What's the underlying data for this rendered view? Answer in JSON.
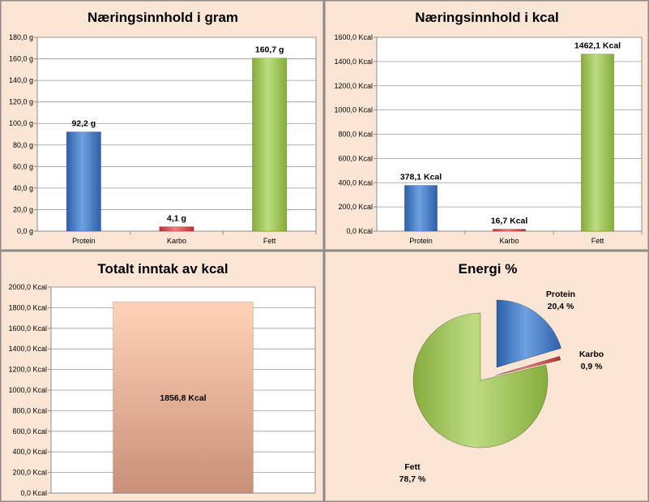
{
  "colors": {
    "protein": "#3f78c8",
    "karbo": "#d64545",
    "fett": "#9bc353",
    "total": "#e9a98c",
    "panel_bg": "#fbe6d5"
  },
  "chart_data": [
    {
      "type": "bar",
      "title": "Næringsinnhold i gram",
      "categories": [
        "Protein",
        "Karbo",
        "Fett"
      ],
      "values": [
        92.2,
        4.1,
        160.7
      ],
      "data_labels": [
        "92,2 g",
        "4,1 g",
        "160,7 g"
      ],
      "ylim": [
        0,
        180
      ],
      "yticks": [
        "0,0 g",
        "20,0 g",
        "40,0 g",
        "60,0 g",
        "80,0 g",
        "100,0 g",
        "120,0 g",
        "140,0 g",
        "160,0 g",
        "180,0 g"
      ],
      "grid": true,
      "legend": "none"
    },
    {
      "type": "bar",
      "title": "Næringsinnhold i kcal",
      "categories": [
        "Protein",
        "Karbo",
        "Fett"
      ],
      "values": [
        378.1,
        16.7,
        1462.1
      ],
      "data_labels": [
        "378,1 Kcal",
        "16,7 Kcal",
        "1462,1 Kcal"
      ],
      "ylim": [
        0,
        1600
      ],
      "yticks": [
        "0,0 Kcal",
        "200,0 Kcal",
        "400,0 Kcal",
        "600,0 Kcal",
        "800,0 Kcal",
        "1000,0 Kcal",
        "1200,0 Kcal",
        "1400,0 Kcal",
        "1600,0 Kcal"
      ],
      "grid": true,
      "legend": "none"
    },
    {
      "type": "bar",
      "title": "Totalt inntak av kcal",
      "categories": [
        ""
      ],
      "values": [
        1856.8
      ],
      "data_labels": [
        "1856,8 Kcal"
      ],
      "ylim": [
        0,
        2000
      ],
      "yticks": [
        "0,0 Kcal",
        "200,0 Kcal",
        "400,0 Kcal",
        "600,0 Kcal",
        "800,0 Kcal",
        "1000,0 Kcal",
        "1200,0 Kcal",
        "1400,0 Kcal",
        "1600,0 Kcal",
        "1800,0 Kcal",
        "2000,0 Kcal"
      ],
      "grid": true,
      "legend": "none"
    },
    {
      "type": "pie",
      "title": "Energi %",
      "categories": [
        "Protein",
        "Karbo",
        "Fett"
      ],
      "values": [
        20.4,
        0.9,
        78.7
      ],
      "data_labels": [
        "20,4 %",
        "0,9 %",
        "78,7 %"
      ],
      "exploded": true,
      "legend": "none"
    }
  ]
}
